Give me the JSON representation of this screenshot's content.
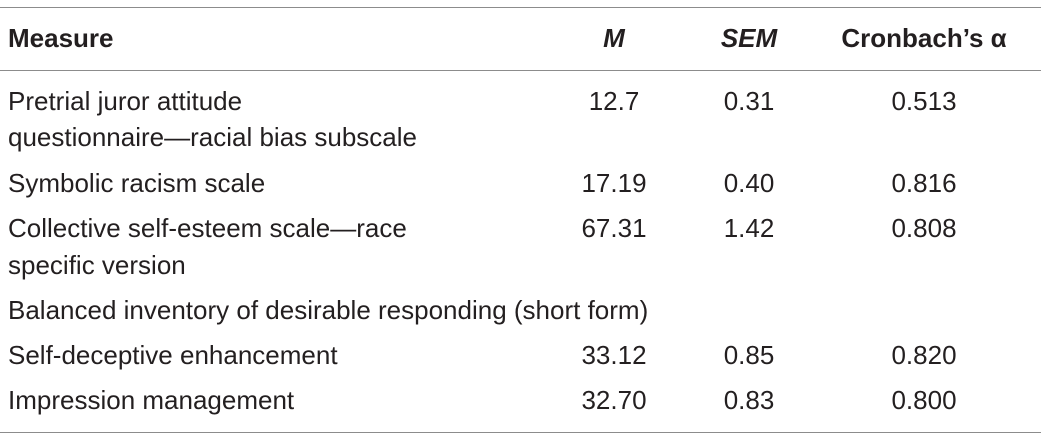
{
  "table": {
    "headers": {
      "measure": "Measure",
      "m": "M",
      "sem": "SEM",
      "alpha": "Cronbach’s α"
    },
    "rows": [
      {
        "measure_line1": "Pretrial juror attitude",
        "measure_line2": "questionnaire—racial bias subscale",
        "m": "12.7",
        "sem": "0.31",
        "alpha": "0.513"
      },
      {
        "measure_line1": "Symbolic racism scale",
        "m": "17.19",
        "sem": "0.40",
        "alpha": "0.816"
      },
      {
        "measure_line1": "Collective self-esteem scale—race",
        "measure_line2": "specific version",
        "m": "67.31",
        "sem": "1.42",
        "alpha": "0.808"
      },
      {
        "group_label": "Balanced inventory of desirable responding (short form)"
      },
      {
        "measure_line1": "Self-deceptive enhancement",
        "m": "33.12",
        "sem": "0.85",
        "alpha": "0.820"
      },
      {
        "measure_line1": "Impression management",
        "m": "32.70",
        "sem": "0.83",
        "alpha": "0.800"
      }
    ]
  }
}
